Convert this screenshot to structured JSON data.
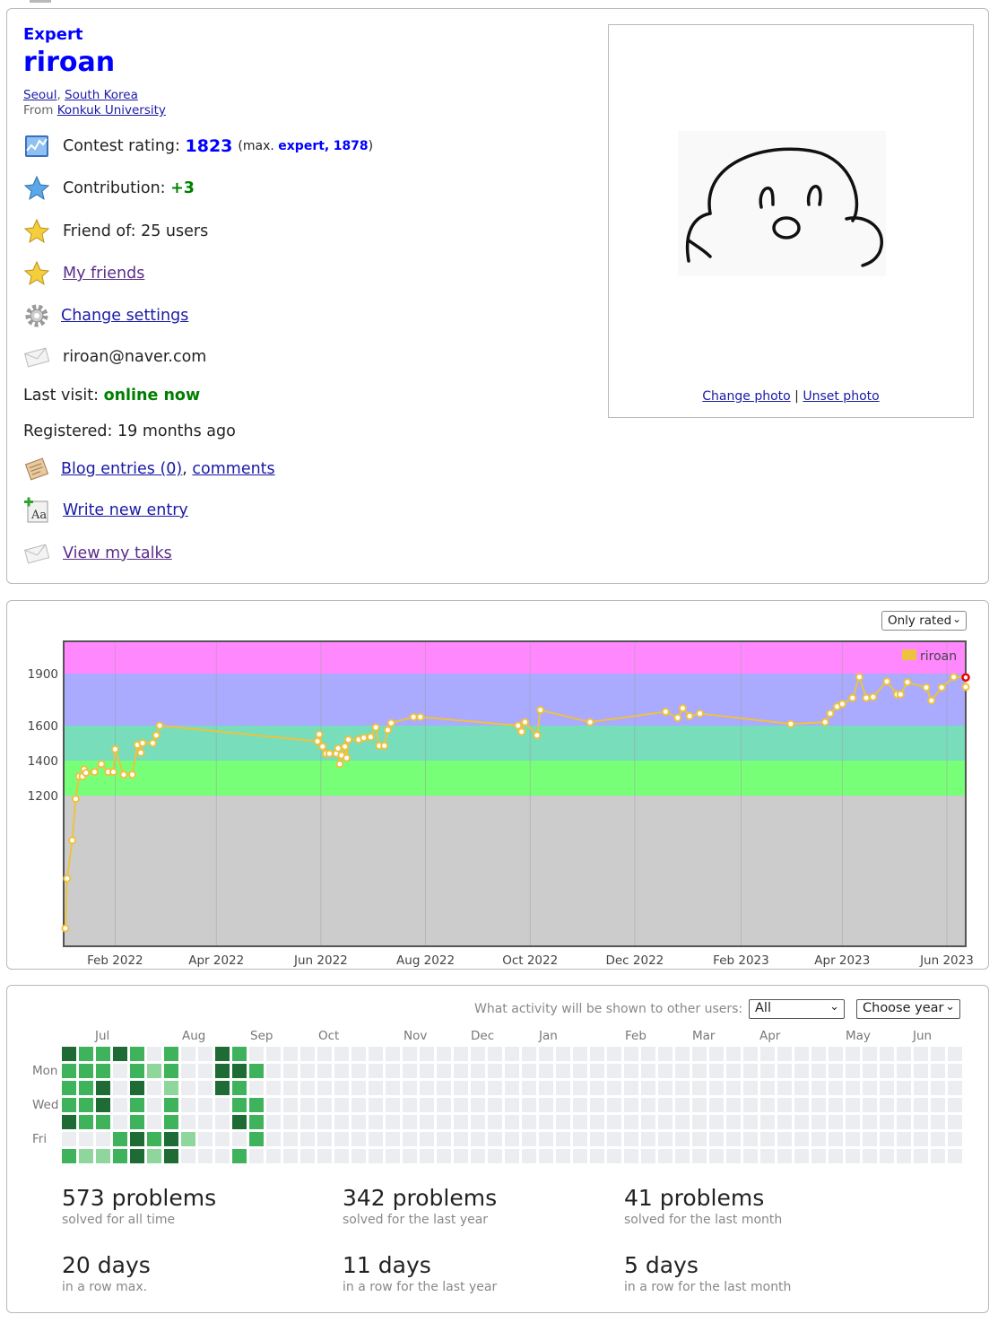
{
  "profile": {
    "rank": "Expert",
    "handle": "riroan",
    "city": "Seoul",
    "country": "South Korea",
    "from_label": "From",
    "organization": "Konkuk University",
    "rating_label": "Contest rating:",
    "rating_value": "1823",
    "rating_max_open": "(max.",
    "rating_max_rank": "expert,",
    "rating_max_value": "1878",
    "rating_max_close": ")",
    "contribution_label": "Contribution:",
    "contribution_value": "+3",
    "friend_of": "Friend of: 25 users",
    "my_friends": "My friends",
    "change_settings": "Change settings",
    "email": "riroan@naver.com",
    "last_visit_label": "Last visit:",
    "last_visit_value": "online now",
    "registered": "Registered: 19 months ago",
    "blog_entries": "Blog entries (0)",
    "comments": "comments",
    "write_entry": "Write new entry",
    "view_talks": "View my talks",
    "change_photo": "Change photo",
    "photo_sep": "|",
    "unset_photo": "Unset photo"
  },
  "rating_graph": {
    "filter_select": "Only rated"
  },
  "chart_data": {
    "type": "line",
    "series": [
      {
        "name": "riroan",
        "color": "#edc240",
        "points": [
          [
            "2022-01-03",
            400
          ],
          [
            "2022-01-04",
            700
          ],
          [
            "2022-01-07",
            930
          ],
          [
            "2022-01-09",
            1180
          ],
          [
            "2022-01-11",
            1310
          ],
          [
            "2022-01-13",
            1310
          ],
          [
            "2022-01-14",
            1350
          ],
          [
            "2022-01-15",
            1330
          ],
          [
            "2022-01-20",
            1335
          ],
          [
            "2022-01-24",
            1380
          ],
          [
            "2022-01-28",
            1335
          ],
          [
            "2022-01-31",
            1335
          ],
          [
            "2022-02-01",
            1465
          ],
          [
            "2022-02-06",
            1320
          ],
          [
            "2022-02-11",
            1320
          ],
          [
            "2022-02-14",
            1490
          ],
          [
            "2022-02-16",
            1445
          ],
          [
            "2022-02-17",
            1500
          ],
          [
            "2022-02-23",
            1500
          ],
          [
            "2022-02-25",
            1545
          ],
          [
            "2022-02-27",
            1600
          ],
          [
            "2022-05-30",
            1510
          ],
          [
            "2022-05-31",
            1550
          ],
          [
            "2022-06-02",
            1480
          ],
          [
            "2022-06-04",
            1440
          ],
          [
            "2022-06-06",
            1440
          ],
          [
            "2022-06-10",
            1440
          ],
          [
            "2022-06-11",
            1470
          ],
          [
            "2022-06-12",
            1380
          ],
          [
            "2022-06-13",
            1430
          ],
          [
            "2022-06-15",
            1480
          ],
          [
            "2022-06-16",
            1415
          ],
          [
            "2022-06-17",
            1520
          ],
          [
            "2022-06-23",
            1520
          ],
          [
            "2022-06-26",
            1530
          ],
          [
            "2022-06-30",
            1535
          ],
          [
            "2022-07-03",
            1590
          ],
          [
            "2022-07-05",
            1485
          ],
          [
            "2022-07-08",
            1485
          ],
          [
            "2022-07-10",
            1575
          ],
          [
            "2022-07-12",
            1615
          ],
          [
            "2022-07-25",
            1650
          ],
          [
            "2022-07-29",
            1650
          ],
          [
            "2022-09-24",
            1600
          ],
          [
            "2022-09-26",
            1565
          ],
          [
            "2022-09-28",
            1620
          ],
          [
            "2022-10-05",
            1545
          ],
          [
            "2022-10-07",
            1690
          ],
          [
            "2022-11-05",
            1620
          ],
          [
            "2022-12-19",
            1680
          ],
          [
            "2022-12-26",
            1645
          ],
          [
            "2022-12-29",
            1700
          ],
          [
            "2023-01-02",
            1655
          ],
          [
            "2023-01-08",
            1670
          ],
          [
            "2023-03-02",
            1610
          ],
          [
            "2023-03-22",
            1620
          ],
          [
            "2023-03-25",
            1670
          ],
          [
            "2023-03-29",
            1710
          ],
          [
            "2023-04-01",
            1725
          ],
          [
            "2023-04-07",
            1760
          ],
          [
            "2023-04-11",
            1880
          ],
          [
            "2023-04-15",
            1760
          ],
          [
            "2023-04-19",
            1765
          ],
          [
            "2023-04-27",
            1855
          ],
          [
            "2023-05-03",
            1780
          ],
          [
            "2023-05-05",
            1780
          ],
          [
            "2023-05-09",
            1850
          ],
          [
            "2023-05-20",
            1820
          ],
          [
            "2023-05-23",
            1745
          ],
          [
            "2023-05-29",
            1820
          ],
          [
            "2023-06-05",
            1880
          ],
          [
            "2023-06-12",
            1878
          ],
          [
            "2023-06-12",
            1823
          ]
        ]
      }
    ],
    "x_range": [
      "2022-01-02",
      "2023-06-12"
    ],
    "y_ticks": [
      1200,
      1400,
      1600,
      1900
    ],
    "x_ticks": [
      "Feb 2022",
      "Apr 2022",
      "Jun 2022",
      "Aug 2022",
      "Oct 2022",
      "Dec 2022",
      "Feb 2023",
      "Apr 2023",
      "Jun 2023"
    ],
    "bands": [
      {
        "from": 0,
        "to": 1200,
        "color": "#cccccc"
      },
      {
        "from": 1200,
        "to": 1400,
        "color": "#77ff77"
      },
      {
        "from": 1400,
        "to": 1600,
        "color": "#77ddbb"
      },
      {
        "from": 1600,
        "to": 1900,
        "color": "#aaaaff"
      },
      {
        "from": 1900,
        "to": 2100,
        "color": "#ff88ff"
      }
    ],
    "legend_position": "top-right",
    "grid": true
  },
  "activity": {
    "question": "What activity will be shown to other users:",
    "visibility_select": "All",
    "year_select": "Choose year",
    "months": [
      "Jul",
      "Aug",
      "Sep",
      "Oct",
      "Nov",
      "Dec",
      "Jan",
      "Feb",
      "Mar",
      "Apr",
      "May",
      "Jun"
    ],
    "day_labels": [
      "Mon",
      "Wed",
      "Fri"
    ],
    "colors": [
      "#ebedf0",
      "#8fd69d",
      "#3fb35c",
      "#1e6b35"
    ],
    "stats": [
      {
        "value": "573 problems",
        "caption": "solved for all time"
      },
      {
        "value": "342 problems",
        "caption": "solved for the last year"
      },
      {
        "value": "41 problems",
        "caption": "solved for the last month"
      },
      {
        "value": "20 days",
        "caption": "in a row max."
      },
      {
        "value": "11 days",
        "caption": "in a row for the last year"
      },
      {
        "value": "5 days",
        "caption": "in a row for the last month"
      }
    ],
    "heatmap": [
      "3222302000022",
      "2222201300020",
      "2233201020020",
      "3000022000003",
      "2232233130000",
      "0100021320232",
      "2212233232000",
      "0000010000000",
      "0000000000000",
      "3330000001001",
      "2322302000000",
      "0202220000000",
      "0000000000000",
      "0000000000000",
      "0000000000000",
      "0000000000000",
      "0000000000000",
      "0000000000000",
      "0000000000000",
      "0000000000000",
      "0000000000000",
      "0000000000000",
      "0000000000000",
      "0000000000000",
      "0000000000000",
      "0000000000000",
      "0000000000000",
      "0000000000000",
      "0000000000000",
      "0000000000000",
      "0000000000000",
      "0000000000000",
      "0000000000000",
      "0000000000000",
      "0000000000000",
      "0000000000000",
      "0000000000000",
      "0000000000000",
      "0000000000000",
      "0000000000000",
      "0000000000000",
      "0000000000000",
      "0000000000000",
      "0000000000000",
      "0000000000000",
      "0000000000000",
      "0000000000000",
      "0000000000000",
      "0000000000000",
      "0000000000000",
      "0000000000000",
      "0000000000000",
      "0000000000000"
    ]
  }
}
